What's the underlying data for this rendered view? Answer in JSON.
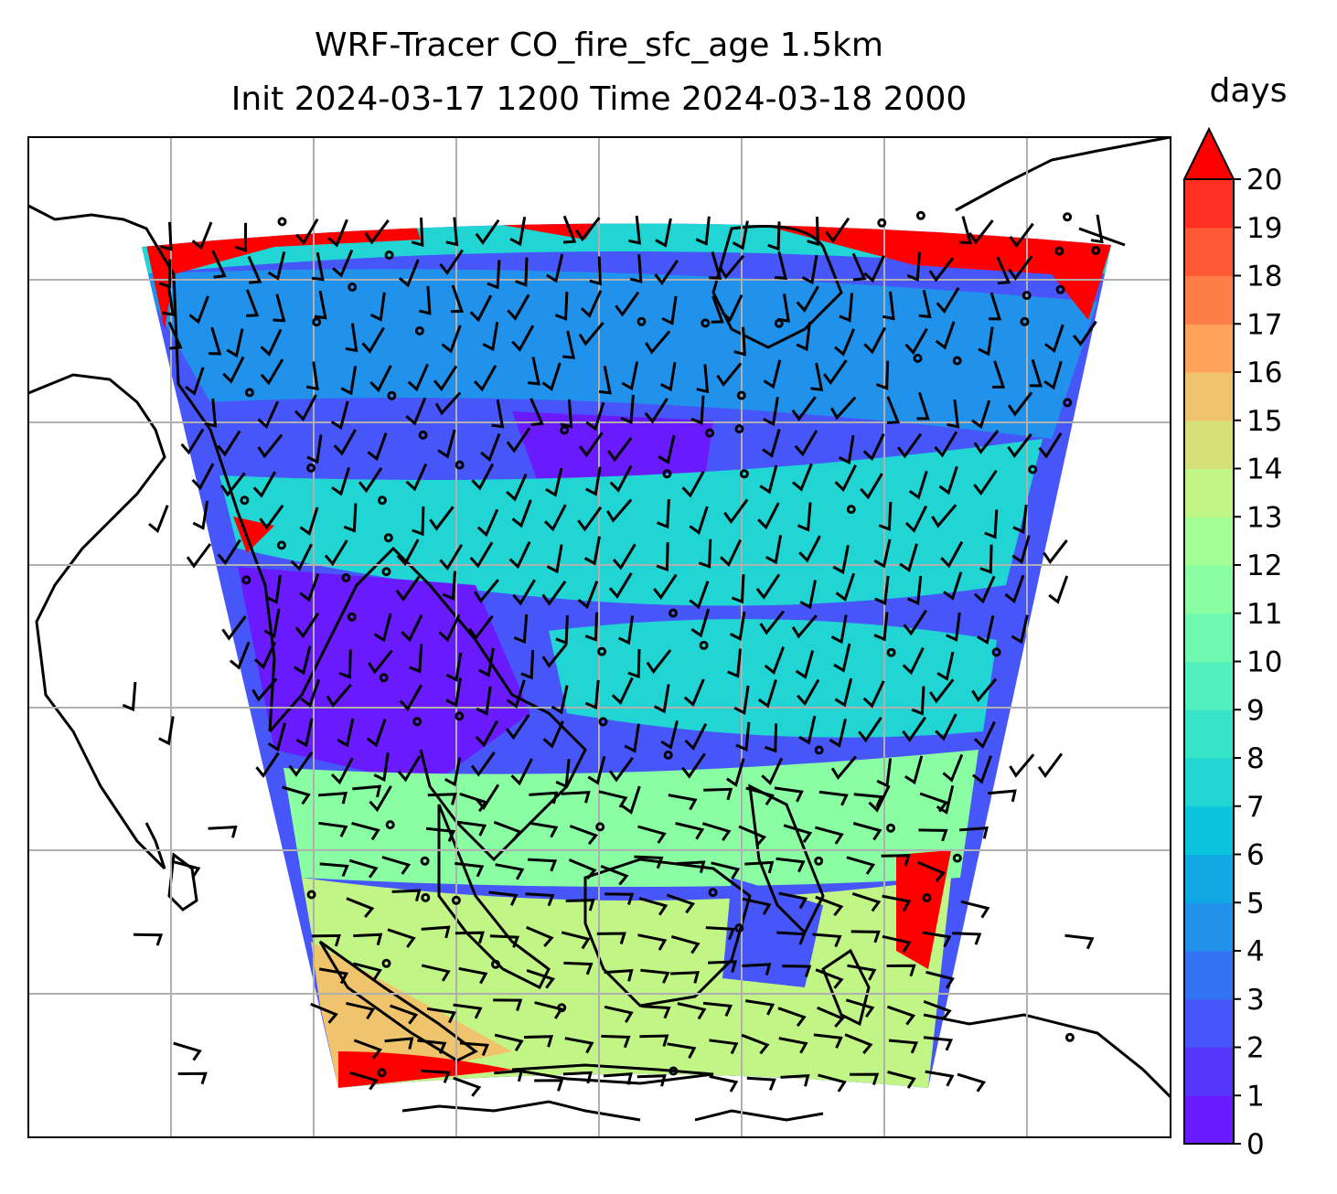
{
  "title": {
    "line1": "WRF-Tracer CO_fire_sfc_age 1.5km",
    "line2": "Init 2024-03-17 1200 Time 2024-03-18 2000"
  },
  "colorbar": {
    "label": "days",
    "min": 0,
    "max": 20,
    "extend": "max",
    "ticks": [
      "0",
      "1",
      "2",
      "3",
      "4",
      "5",
      "6",
      "7",
      "8",
      "9",
      "10",
      "11",
      "12",
      "13",
      "14",
      "15",
      "16",
      "17",
      "18",
      "19",
      "20"
    ],
    "colors": [
      "#6a1bfd",
      "#5636fb",
      "#4656f8",
      "#3373f3",
      "#2192ec",
      "#10a9e5",
      "#0ac3dd",
      "#20d5d4",
      "#37e4c9",
      "#53f0bd",
      "#6dfab0",
      "#8afea2",
      "#a3fe94",
      "#c1f687",
      "#d7e078",
      "#f0c46c",
      "#ffa35a",
      "#ff7d48",
      "#ff5834",
      "#ff301f"
    ],
    "extend_color": "#ff0000"
  },
  "field_colors": {
    "very_young": "#6a1bfd",
    "young": "#4656f8",
    "mid": "#2192ec",
    "cyan": "#20d5d4",
    "green": "#8afea2",
    "yellow": "#c1f687",
    "orange": "#f0c46c",
    "old": "#ff0000"
  },
  "map": {
    "gridlines": "on",
    "wind_barbs": "on",
    "coastlines": "on"
  }
}
